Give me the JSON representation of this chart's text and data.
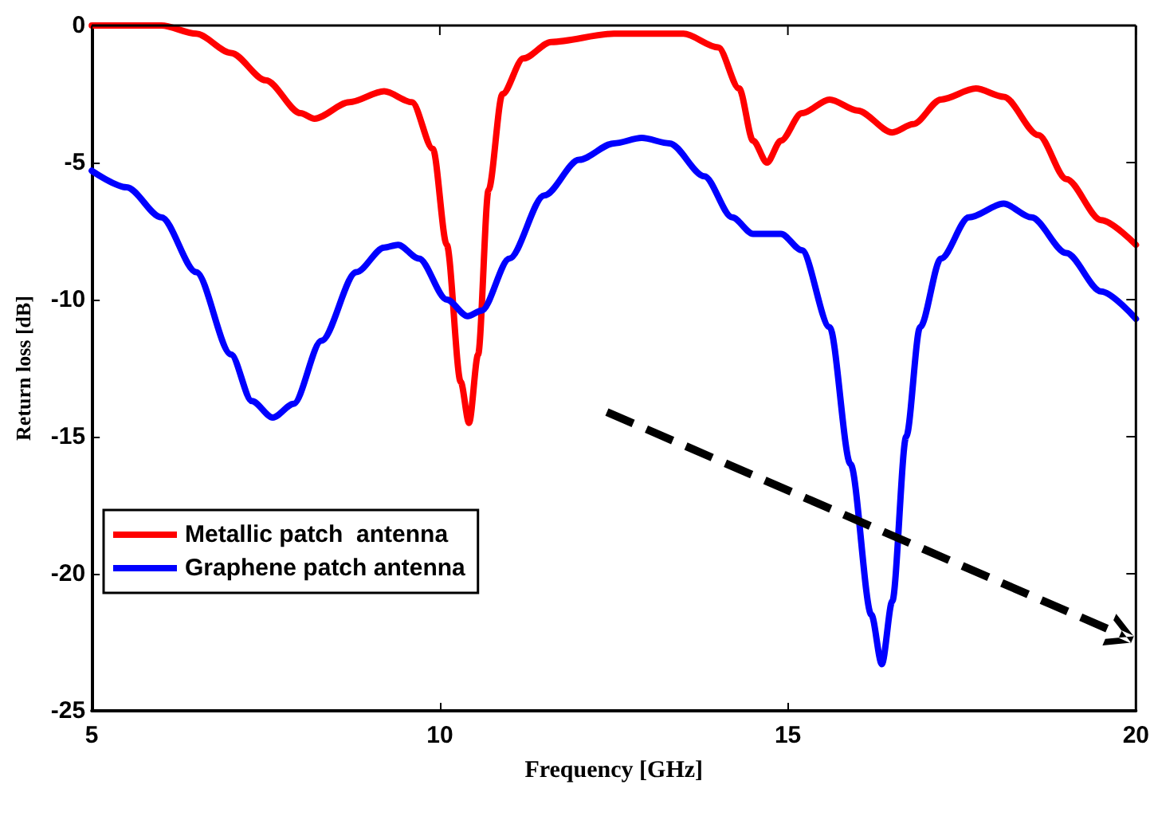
{
  "chart_data": {
    "type": "line",
    "xlabel": "Frequency [GHz]",
    "ylabel": "Return loss [dB]",
    "xlim": [
      5,
      20
    ],
    "xticks": [
      5,
      10,
      15,
      20
    ],
    "ylim": [
      -25,
      0
    ],
    "yticks": [
      -25,
      -20,
      -15,
      -10,
      -5,
      0
    ],
    "grid": false,
    "legend": "bottom left",
    "marker": "none",
    "line_style": "solid",
    "series": [
      {
        "name": "Metallic patch  antenna",
        "color": "#ff0000",
        "x": [
          5,
          6,
          6.5,
          7,
          7.5,
          8,
          8.2,
          8.7,
          9.2,
          9.6,
          9.9,
          10.1,
          10.3,
          10.42,
          10.55,
          10.7,
          10.9,
          11.2,
          11.6,
          12.5,
          13.5,
          14,
          14.3,
          14.5,
          14.7,
          14.9,
          15.2,
          15.6,
          16,
          16.5,
          16.8,
          17.2,
          17.7,
          18.1,
          18.6,
          19,
          19.5,
          20
        ],
        "values": [
          0,
          0,
          -0.3,
          -1,
          -2,
          -3.2,
          -3.4,
          -2.8,
          -2.4,
          -2.8,
          -4.5,
          -8,
          -13,
          -14.5,
          -12,
          -6,
          -2.5,
          -1.2,
          -0.6,
          -0.3,
          -0.3,
          -0.8,
          -2.3,
          -4.2,
          -5,
          -4.2,
          -3.2,
          -2.7,
          -3.1,
          -3.9,
          -3.6,
          -2.7,
          -2.3,
          -2.6,
          -4,
          -5.6,
          -7.1,
          -8
        ]
      },
      {
        "name": "Graphene patch antenna",
        "color": "#0000ff",
        "x": [
          5,
          5.5,
          6,
          6.5,
          7,
          7.3,
          7.6,
          7.9,
          8.3,
          8.8,
          9.2,
          9.4,
          9.7,
          10.1,
          10.4,
          10.6,
          11,
          11.5,
          12,
          12.5,
          12.9,
          13.3,
          13.8,
          14.2,
          14.5,
          14.9,
          15.2,
          15.6,
          15.9,
          16.2,
          16.35,
          16.5,
          16.7,
          16.9,
          17.2,
          17.6,
          18.1,
          18.5,
          19,
          19.5,
          20
        ],
        "values": [
          -5.3,
          -5.9,
          -7,
          -9,
          -12,
          -13.7,
          -14.3,
          -13.8,
          -11.5,
          -9,
          -8.1,
          -8,
          -8.5,
          -10,
          -10.6,
          -10.4,
          -8.5,
          -6.2,
          -4.9,
          -4.3,
          -4.1,
          -4.3,
          -5.5,
          -7,
          -7.6,
          -7.6,
          -8.2,
          -11,
          -16,
          -21.5,
          -23.3,
          -21,
          -15,
          -11,
          -8.5,
          -7,
          -6.5,
          -7,
          -8.3,
          -9.7,
          -10.7
        ]
      }
    ]
  }
}
